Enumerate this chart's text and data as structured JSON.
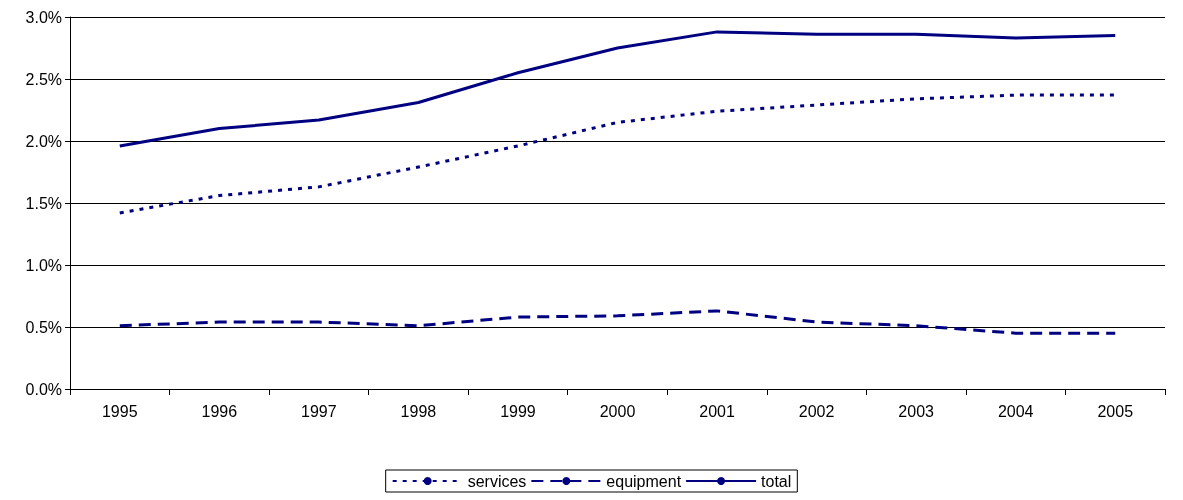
{
  "chart_data": {
    "type": "line",
    "categories": [
      "1995",
      "1996",
      "1997",
      "1998",
      "1999",
      "2000",
      "2001",
      "2002",
      "2003",
      "2004",
      "2005"
    ],
    "series": [
      {
        "name": "services",
        "color": "#000080",
        "line_style": "dotted",
        "values": [
          1.42,
          1.56,
          1.63,
          1.79,
          1.96,
          2.15,
          2.24,
          2.29,
          2.34,
          2.37,
          2.37
        ]
      },
      {
        "name": "equipment",
        "color": "#000080",
        "line_style": "dashed",
        "values": [
          0.51,
          0.54,
          0.54,
          0.51,
          0.58,
          0.59,
          0.63,
          0.54,
          0.51,
          0.45,
          0.45
        ]
      },
      {
        "name": "total",
        "color": "#000080",
        "line_style": "solid",
        "values": [
          1.96,
          2.1,
          2.17,
          2.31,
          2.55,
          2.75,
          2.88,
          2.86,
          2.86,
          2.83,
          2.85
        ]
      }
    ],
    "ylim": [
      0,
      3
    ],
    "yticks": [
      {
        "value": 0,
        "label": "0.0%"
      },
      {
        "value": 0.5,
        "label": "0.5%"
      },
      {
        "value": 1,
        "label": "1.0%"
      },
      {
        "value": 1.5,
        "label": "1.5%"
      },
      {
        "value": 2,
        "label": "2.0%"
      },
      {
        "value": 2.5,
        "label": "2.5%"
      },
      {
        "value": 3,
        "label": "3.0%"
      }
    ],
    "grid": "y",
    "legend": "bottom",
    "marker": "none"
  }
}
